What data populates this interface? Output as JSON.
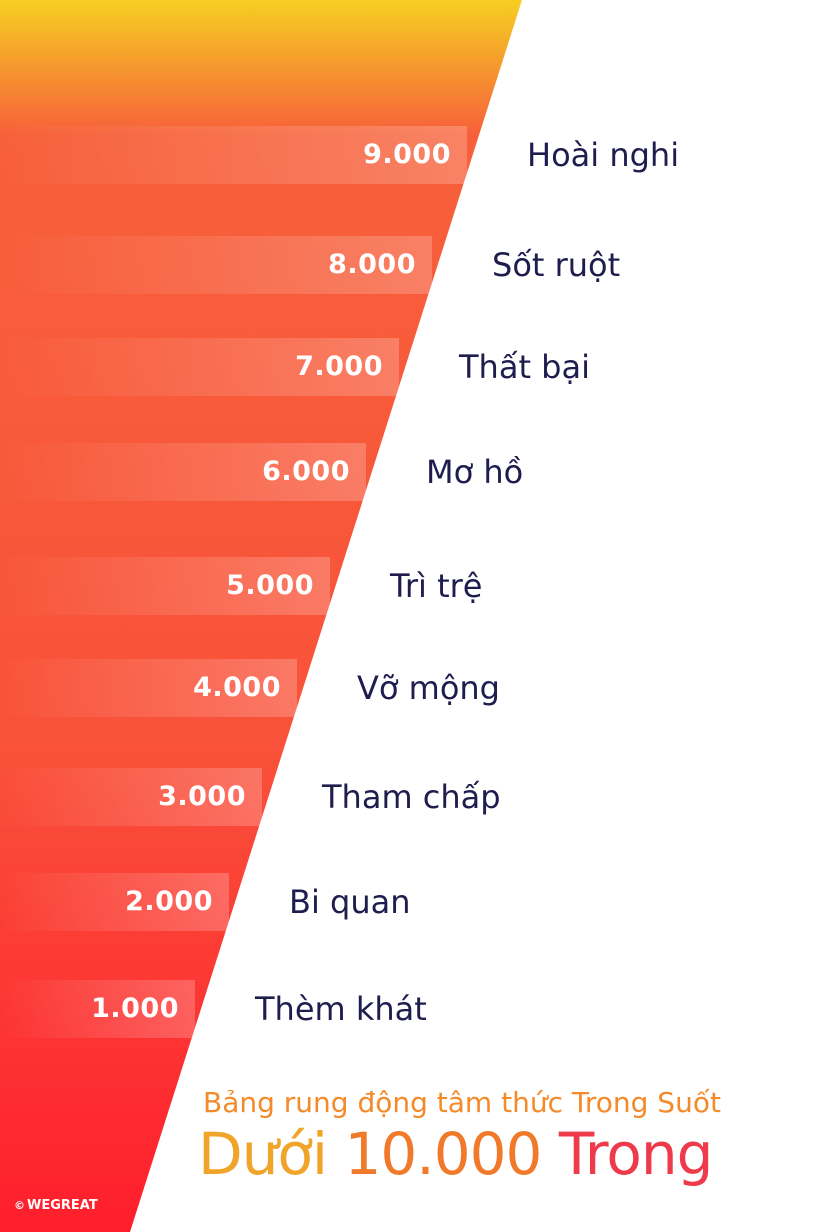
{
  "levels": [
    {
      "value": "9.000",
      "label": "Hoài nghi"
    },
    {
      "value": "8.000",
      "label": "Sốt ruột"
    },
    {
      "value": "7.000",
      "label": "Thất bại"
    },
    {
      "value": "6.000",
      "label": "Mơ hồ"
    },
    {
      "value": "5.000",
      "label": "Trì trệ"
    },
    {
      "value": "4.000",
      "label": "Vỡ mộng"
    },
    {
      "value": "3.000",
      "label": "Tham chấp"
    },
    {
      "value": "2.000",
      "label": "Bi quan"
    },
    {
      "value": "1.000",
      "label": "Thèm khát"
    }
  ],
  "subtitle": "Bảng rung động tâm thức Trong Suốt",
  "title": {
    "part1": "Dưới ",
    "part2": "10.000 ",
    "part3": "Trong"
  },
  "brand": {
    "copyright": "©",
    "name": "WEGREAT"
  },
  "colors": {
    "top": "#f6cf22",
    "mid": "#f7603a",
    "bottom": "#ff1e2d",
    "text_dark": "#1e1d4e"
  }
}
